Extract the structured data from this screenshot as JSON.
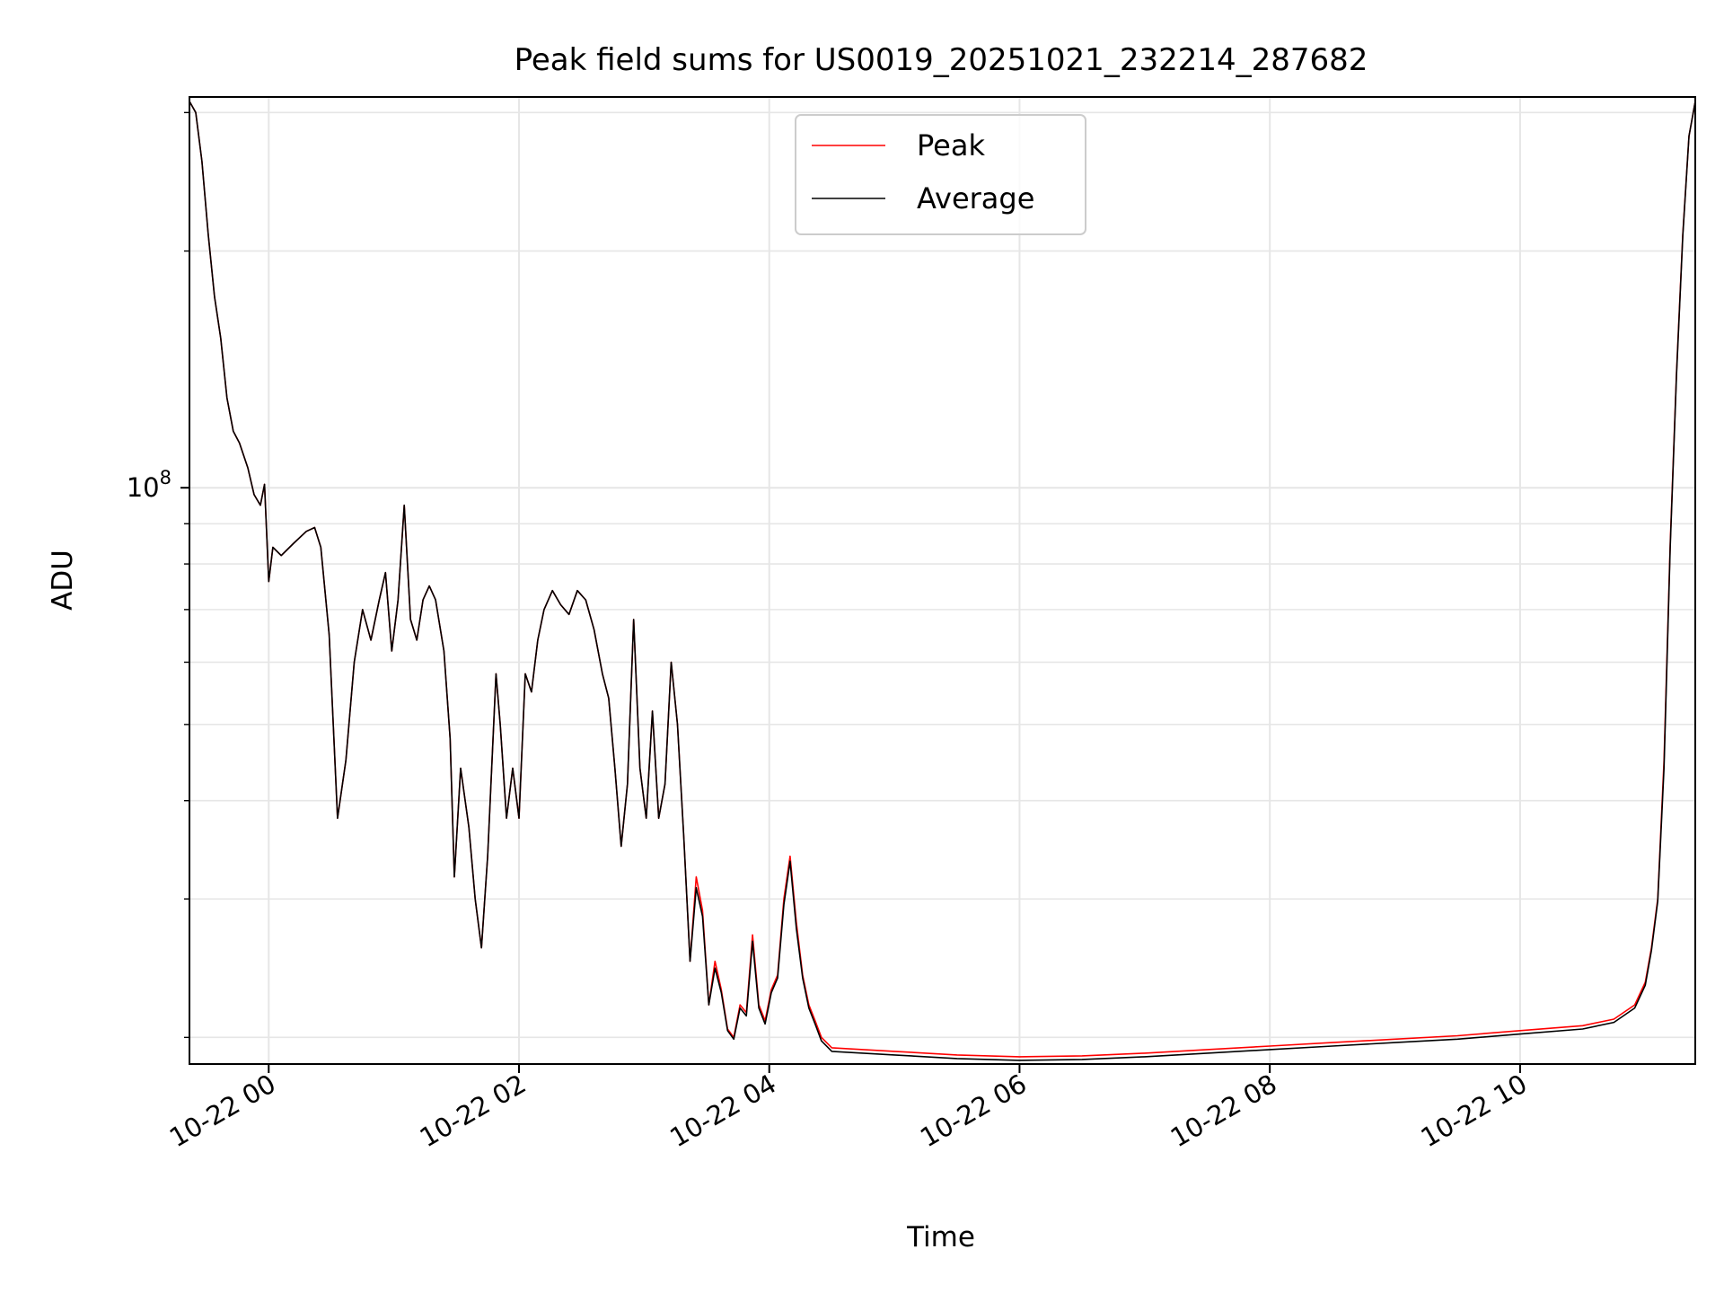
{
  "chart_data": {
    "type": "line",
    "title": "Peak field sums for US0019_20251021_232214_287682",
    "xlabel": "Time",
    "ylabel": "ADU",
    "y_scale": "log",
    "grid": true,
    "legend_position": "top-center",
    "x_tick_labels": [
      "10-22 00",
      "10-22 02",
      "10-22 04",
      "10-22 06",
      "10-22 08",
      "10-22 10"
    ],
    "x_ticks": [
      "2025-10-22 00:00",
      "2025-10-22 02:00",
      "2025-10-22 04:00",
      "2025-10-22 06:00",
      "2025-10-22 08:00",
      "2025-10-22 10:00"
    ],
    "y_tick_labels": [
      {
        "mantissa": "10",
        "exponent": "8",
        "value": 100000000
      }
    ],
    "xlim": [
      "2025-10-21 23:22",
      "2025-10-22 11:24"
    ],
    "ylim": [
      18500000,
      314000000
    ],
    "series": [
      {
        "name": "Peak",
        "color": "#ff0000",
        "points": [
          [
            "2025-10-21 23:22",
            310000000
          ],
          [
            "2025-10-21 23:25",
            300000000
          ],
          [
            "2025-10-21 23:28",
            260000000
          ],
          [
            "2025-10-21 23:31",
            210000000
          ],
          [
            "2025-10-21 23:34",
            175000000
          ],
          [
            "2025-10-21 23:37",
            155000000
          ],
          [
            "2025-10-21 23:40",
            130000000
          ],
          [
            "2025-10-21 23:43",
            118000000
          ],
          [
            "2025-10-21 23:46",
            114000000
          ],
          [
            "2025-10-21 23:50",
            106000000
          ],
          [
            "2025-10-21 23:53",
            98000000
          ],
          [
            "2025-10-21 23:56",
            95000000
          ],
          [
            "2025-10-21 23:58",
            101000000
          ],
          [
            "2025-10-22 00:00",
            76000000
          ],
          [
            "2025-10-22 00:02",
            84000000
          ],
          [
            "2025-10-22 00:06",
            82000000
          ],
          [
            "2025-10-22 00:12",
            85000000
          ],
          [
            "2025-10-22 00:18",
            88000000
          ],
          [
            "2025-10-22 00:22",
            89000000
          ],
          [
            "2025-10-22 00:25",
            84000000
          ],
          [
            "2025-10-22 00:29",
            65000000
          ],
          [
            "2025-10-22 00:33",
            38000000
          ],
          [
            "2025-10-22 00:37",
            45000000
          ],
          [
            "2025-10-22 00:41",
            60000000
          ],
          [
            "2025-10-22 00:45",
            70000000
          ],
          [
            "2025-10-22 00:49",
            64000000
          ],
          [
            "2025-10-22 00:53",
            72000000
          ],
          [
            "2025-10-22 00:56",
            78000000
          ],
          [
            "2025-10-22 00:59",
            62000000
          ],
          [
            "2025-10-22 01:02",
            72000000
          ],
          [
            "2025-10-22 01:05",
            95000000
          ],
          [
            "2025-10-22 01:08",
            68000000
          ],
          [
            "2025-10-22 01:11",
            64000000
          ],
          [
            "2025-10-22 01:14",
            72000000
          ],
          [
            "2025-10-22 01:17",
            75000000
          ],
          [
            "2025-10-22 01:20",
            72000000
          ],
          [
            "2025-10-22 01:24",
            62000000
          ],
          [
            "2025-10-22 01:27",
            48000000
          ],
          [
            "2025-10-22 01:29",
            32000000
          ],
          [
            "2025-10-22 01:32",
            44000000
          ],
          [
            "2025-10-22 01:36",
            37000000
          ],
          [
            "2025-10-22 01:39",
            30000000
          ],
          [
            "2025-10-22 01:42",
            26000000
          ],
          [
            "2025-10-22 01:45",
            34000000
          ],
          [
            "2025-10-22 01:49",
            58000000
          ],
          [
            "2025-10-22 01:51",
            50000000
          ],
          [
            "2025-10-22 01:54",
            38000000
          ],
          [
            "2025-10-22 01:57",
            44000000
          ],
          [
            "2025-10-22 02:00",
            38000000
          ],
          [
            "2025-10-22 02:03",
            58000000
          ],
          [
            "2025-10-22 02:06",
            55000000
          ],
          [
            "2025-10-22 02:09",
            64000000
          ],
          [
            "2025-10-22 02:12",
            70000000
          ],
          [
            "2025-10-22 02:16",
            74000000
          ],
          [
            "2025-10-22 02:20",
            71000000
          ],
          [
            "2025-10-22 02:24",
            69000000
          ],
          [
            "2025-10-22 02:28",
            74000000
          ],
          [
            "2025-10-22 02:32",
            72000000
          ],
          [
            "2025-10-22 02:36",
            66000000
          ],
          [
            "2025-10-22 02:40",
            58000000
          ],
          [
            "2025-10-22 02:43",
            54000000
          ],
          [
            "2025-10-22 02:46",
            44000000
          ],
          [
            "2025-10-22 02:49",
            35000000
          ],
          [
            "2025-10-22 02:52",
            42000000
          ],
          [
            "2025-10-22 02:55",
            68000000
          ],
          [
            "2025-10-22 02:58",
            44000000
          ],
          [
            "2025-10-22 03:01",
            38000000
          ],
          [
            "2025-10-22 03:04",
            52000000
          ],
          [
            "2025-10-22 03:07",
            38000000
          ],
          [
            "2025-10-22 03:10",
            42000000
          ],
          [
            "2025-10-22 03:13",
            60000000
          ],
          [
            "2025-10-22 03:16",
            50000000
          ],
          [
            "2025-10-22 03:19",
            36000000
          ],
          [
            "2025-10-22 03:22",
            25000000
          ],
          [
            "2025-10-22 03:25",
            32000000
          ],
          [
            "2025-10-22 03:28",
            29000000
          ],
          [
            "2025-10-22 03:31",
            22000000
          ],
          [
            "2025-10-22 03:34",
            25000000
          ],
          [
            "2025-10-22 03:37",
            23000000
          ],
          [
            "2025-10-22 03:40",
            20500000
          ],
          [
            "2025-10-22 03:43",
            20000000
          ],
          [
            "2025-10-22 03:46",
            22000000
          ],
          [
            "2025-10-22 03:49",
            21500000
          ],
          [
            "2025-10-22 03:52",
            27000000
          ],
          [
            "2025-10-22 03:55",
            22000000
          ],
          [
            "2025-10-22 03:58",
            21000000
          ],
          [
            "2025-10-22 04:01",
            23000000
          ],
          [
            "2025-10-22 04:04",
            24000000
          ],
          [
            "2025-10-22 04:07",
            30000000
          ],
          [
            "2025-10-22 04:10",
            34000000
          ],
          [
            "2025-10-22 04:13",
            28000000
          ],
          [
            "2025-10-22 04:16",
            24000000
          ],
          [
            "2025-10-22 04:19",
            22000000
          ],
          [
            "2025-10-22 04:22",
            21000000
          ],
          [
            "2025-10-22 04:25",
            20000000
          ],
          [
            "2025-10-22 04:30",
            19400000
          ],
          [
            "2025-10-22 04:45",
            19300000
          ],
          [
            "2025-10-22 05:00",
            19200000
          ],
          [
            "2025-10-22 05:30",
            19000000
          ],
          [
            "2025-10-22 06:00",
            18900000
          ],
          [
            "2025-10-22 06:30",
            18950000
          ],
          [
            "2025-10-22 07:00",
            19100000
          ],
          [
            "2025-10-22 07:30",
            19300000
          ],
          [
            "2025-10-22 08:00",
            19500000
          ],
          [
            "2025-10-22 08:30",
            19700000
          ],
          [
            "2025-10-22 09:00",
            19900000
          ],
          [
            "2025-10-22 09:30",
            20100000
          ],
          [
            "2025-10-22 10:00",
            20400000
          ],
          [
            "2025-10-22 10:30",
            20700000
          ],
          [
            "2025-10-22 10:45",
            21100000
          ],
          [
            "2025-10-22 10:55",
            22000000
          ],
          [
            "2025-10-22 11:00",
            23500000
          ],
          [
            "2025-10-22 11:03",
            26000000
          ],
          [
            "2025-10-22 11:06",
            30000000
          ],
          [
            "2025-10-22 11:09",
            45000000
          ],
          [
            "2025-10-22 11:12",
            85000000
          ],
          [
            "2025-10-22 11:15",
            140000000
          ],
          [
            "2025-10-22 11:18",
            210000000
          ],
          [
            "2025-10-22 11:21",
            280000000
          ],
          [
            "2025-10-22 11:24",
            310000000
          ]
        ]
      },
      {
        "name": "Average",
        "color": "#000000",
        "points": [
          [
            "2025-10-21 23:22",
            310000000
          ],
          [
            "2025-10-21 23:25",
            300000000
          ],
          [
            "2025-10-21 23:28",
            260000000
          ],
          [
            "2025-10-21 23:31",
            210000000
          ],
          [
            "2025-10-21 23:34",
            175000000
          ],
          [
            "2025-10-21 23:37",
            155000000
          ],
          [
            "2025-10-21 23:40",
            130000000
          ],
          [
            "2025-10-21 23:43",
            118000000
          ],
          [
            "2025-10-21 23:46",
            114000000
          ],
          [
            "2025-10-21 23:50",
            106000000
          ],
          [
            "2025-10-21 23:53",
            98000000
          ],
          [
            "2025-10-21 23:56",
            95000000
          ],
          [
            "2025-10-21 23:58",
            101000000
          ],
          [
            "2025-10-22 00:00",
            76000000
          ],
          [
            "2025-10-22 00:02",
            84000000
          ],
          [
            "2025-10-22 00:06",
            82000000
          ],
          [
            "2025-10-22 00:12",
            85000000
          ],
          [
            "2025-10-22 00:18",
            88000000
          ],
          [
            "2025-10-22 00:22",
            89000000
          ],
          [
            "2025-10-22 00:25",
            84000000
          ],
          [
            "2025-10-22 00:29",
            65000000
          ],
          [
            "2025-10-22 00:33",
            38000000
          ],
          [
            "2025-10-22 00:37",
            45000000
          ],
          [
            "2025-10-22 00:41",
            60000000
          ],
          [
            "2025-10-22 00:45",
            70000000
          ],
          [
            "2025-10-22 00:49",
            64000000
          ],
          [
            "2025-10-22 00:53",
            72000000
          ],
          [
            "2025-10-22 00:56",
            78000000
          ],
          [
            "2025-10-22 00:59",
            62000000
          ],
          [
            "2025-10-22 01:02",
            72000000
          ],
          [
            "2025-10-22 01:05",
            95000000
          ],
          [
            "2025-10-22 01:08",
            68000000
          ],
          [
            "2025-10-22 01:11",
            64000000
          ],
          [
            "2025-10-22 01:14",
            72000000
          ],
          [
            "2025-10-22 01:17",
            75000000
          ],
          [
            "2025-10-22 01:20",
            72000000
          ],
          [
            "2025-10-22 01:24",
            62000000
          ],
          [
            "2025-10-22 01:27",
            48000000
          ],
          [
            "2025-10-22 01:29",
            32000000
          ],
          [
            "2025-10-22 01:32",
            44000000
          ],
          [
            "2025-10-22 01:36",
            37000000
          ],
          [
            "2025-10-22 01:39",
            30000000
          ],
          [
            "2025-10-22 01:42",
            26000000
          ],
          [
            "2025-10-22 01:45",
            34000000
          ],
          [
            "2025-10-22 01:49",
            58000000
          ],
          [
            "2025-10-22 01:51",
            50000000
          ],
          [
            "2025-10-22 01:54",
            38000000
          ],
          [
            "2025-10-22 01:57",
            44000000
          ],
          [
            "2025-10-22 02:00",
            38000000
          ],
          [
            "2025-10-22 02:03",
            58000000
          ],
          [
            "2025-10-22 02:06",
            55000000
          ],
          [
            "2025-10-22 02:09",
            64000000
          ],
          [
            "2025-10-22 02:12",
            70000000
          ],
          [
            "2025-10-22 02:16",
            74000000
          ],
          [
            "2025-10-22 02:20",
            71000000
          ],
          [
            "2025-10-22 02:24",
            69000000
          ],
          [
            "2025-10-22 02:28",
            74000000
          ],
          [
            "2025-10-22 02:32",
            72000000
          ],
          [
            "2025-10-22 02:36",
            66000000
          ],
          [
            "2025-10-22 02:40",
            58000000
          ],
          [
            "2025-10-22 02:43",
            54000000
          ],
          [
            "2025-10-22 02:46",
            44000000
          ],
          [
            "2025-10-22 02:49",
            35000000
          ],
          [
            "2025-10-22 02:52",
            42000000
          ],
          [
            "2025-10-22 02:55",
            68000000
          ],
          [
            "2025-10-22 02:58",
            44000000
          ],
          [
            "2025-10-22 03:01",
            38000000
          ],
          [
            "2025-10-22 03:04",
            52000000
          ],
          [
            "2025-10-22 03:07",
            38000000
          ],
          [
            "2025-10-22 03:10",
            42000000
          ],
          [
            "2025-10-22 03:13",
            60000000
          ],
          [
            "2025-10-22 03:16",
            50000000
          ],
          [
            "2025-10-22 03:19",
            36000000
          ],
          [
            "2025-10-22 03:22",
            25000000
          ],
          [
            "2025-10-22 03:25",
            31000000
          ],
          [
            "2025-10-22 03:28",
            28500000
          ],
          [
            "2025-10-22 03:31",
            22000000
          ],
          [
            "2025-10-22 03:34",
            24500000
          ],
          [
            "2025-10-22 03:37",
            22800000
          ],
          [
            "2025-10-22 03:40",
            20400000
          ],
          [
            "2025-10-22 03:43",
            19900000
          ],
          [
            "2025-10-22 03:46",
            21800000
          ],
          [
            "2025-10-22 03:49",
            21300000
          ],
          [
            "2025-10-22 03:52",
            26500000
          ],
          [
            "2025-10-22 03:55",
            21800000
          ],
          [
            "2025-10-22 03:58",
            20800000
          ],
          [
            "2025-10-22 04:01",
            22800000
          ],
          [
            "2025-10-22 04:04",
            23800000
          ],
          [
            "2025-10-22 04:07",
            29500000
          ],
          [
            "2025-10-22 04:10",
            33500000
          ],
          [
            "2025-10-22 04:13",
            27500000
          ],
          [
            "2025-10-22 04:16",
            23800000
          ],
          [
            "2025-10-22 04:19",
            21800000
          ],
          [
            "2025-10-22 04:22",
            20800000
          ],
          [
            "2025-10-22 04:25",
            19800000
          ],
          [
            "2025-10-22 04:30",
            19200000
          ],
          [
            "2025-10-22 04:45",
            19100000
          ],
          [
            "2025-10-22 05:00",
            19000000
          ],
          [
            "2025-10-22 05:30",
            18800000
          ],
          [
            "2025-10-22 06:00",
            18700000
          ],
          [
            "2025-10-22 06:30",
            18750000
          ],
          [
            "2025-10-22 07:00",
            18900000
          ],
          [
            "2025-10-22 07:30",
            19100000
          ],
          [
            "2025-10-22 08:00",
            19300000
          ],
          [
            "2025-10-22 08:30",
            19500000
          ],
          [
            "2025-10-22 09:00",
            19700000
          ],
          [
            "2025-10-22 09:30",
            19900000
          ],
          [
            "2025-10-22 10:00",
            20200000
          ],
          [
            "2025-10-22 10:30",
            20500000
          ],
          [
            "2025-10-22 10:45",
            20900000
          ],
          [
            "2025-10-22 10:55",
            21800000
          ],
          [
            "2025-10-22 11:00",
            23300000
          ],
          [
            "2025-10-22 11:03",
            25800000
          ],
          [
            "2025-10-22 11:06",
            29800000
          ],
          [
            "2025-10-22 11:09",
            44000000
          ],
          [
            "2025-10-22 11:12",
            84000000
          ],
          [
            "2025-10-22 11:15",
            139000000
          ],
          [
            "2025-10-22 11:18",
            209000000
          ],
          [
            "2025-10-22 11:21",
            280000000
          ],
          [
            "2025-10-22 11:24",
            310000000
          ]
        ]
      }
    ]
  }
}
